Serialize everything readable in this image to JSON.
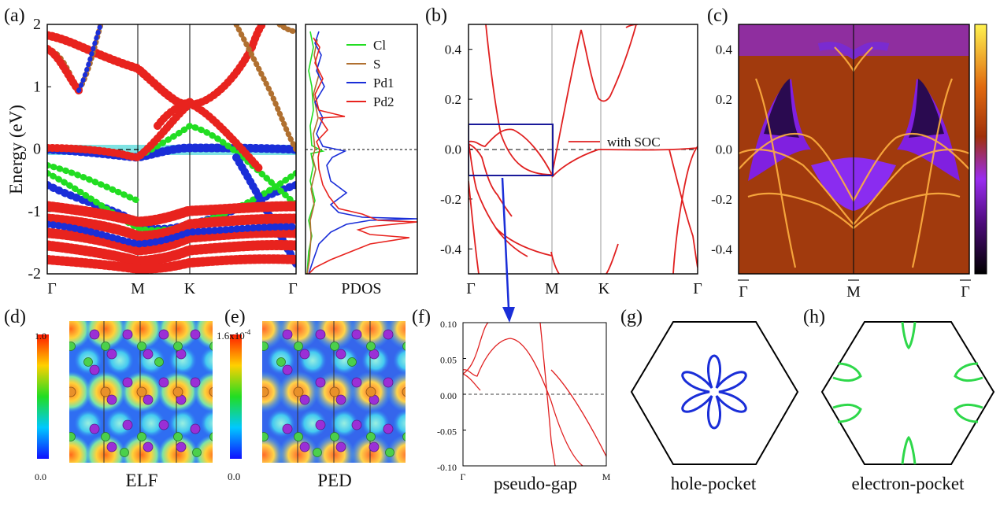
{
  "panels": {
    "a": "(a)",
    "b": "(b)",
    "c": "(c)",
    "d": "(d)",
    "e": "(e)",
    "f": "(f)",
    "g": "(g)",
    "h": "(h)"
  },
  "colors": {
    "cl": "#22dd22",
    "s": "#b07030",
    "pd1": "#1a2ed8",
    "pd2": "#e8231e",
    "soc": "#e02020",
    "arrow": "#1a2ed8",
    "highlight": "#7fe3e3"
  },
  "chart_data": [
    {
      "id": "a",
      "type": "line",
      "ylabel": "Energy (eV)",
      "ylim": [
        -2,
        2
      ],
      "yticks": [
        "2",
        "1",
        "0",
        "-1",
        "-2"
      ],
      "kpoints": [
        "Γ",
        "M",
        "K",
        "Γ"
      ],
      "pdos_label": "PDOS",
      "legend": {
        "position": "right",
        "entries": [
          "Cl",
          "S",
          "Pd1",
          "Pd2"
        ]
      }
    },
    {
      "id": "b",
      "type": "line",
      "ylim": [
        -0.5,
        0.5
      ],
      "yticks": [
        "0.4",
        "0.2",
        "0.0",
        "-0.2",
        "-0.4"
      ],
      "kpoints": [
        "Γ",
        "M",
        "K",
        "Γ"
      ],
      "legend": {
        "position": "right",
        "entries": [
          "with SOC"
        ]
      }
    },
    {
      "id": "c",
      "type": "heatmap",
      "ylim": [
        -0.5,
        0.5
      ],
      "yticks": [
        "0.4",
        "0.2",
        "0.0",
        "-0.2",
        "-0.4"
      ],
      "kpoints": [
        "Γ",
        "M",
        "Γ"
      ]
    },
    {
      "id": "d",
      "type": "heatmap",
      "colorbar": {
        "max": "1.0",
        "min": "0.0"
      },
      "caption": "ELF"
    },
    {
      "id": "e",
      "type": "heatmap",
      "colorbar": {
        "max": "1.6x10",
        "max_exp": "-4",
        "min": "0.0"
      },
      "caption": "PED"
    },
    {
      "id": "f",
      "type": "line",
      "ylim": [
        -0.1,
        0.1
      ],
      "yticks": [
        "0.10",
        "0.05",
        "0.00",
        "-0.05",
        "-0.10"
      ],
      "kpoints": [
        "Γ",
        "M"
      ],
      "caption": "pseudo-gap"
    },
    {
      "id": "g",
      "type": "diagram",
      "caption": "hole-pocket"
    },
    {
      "id": "h",
      "type": "diagram",
      "caption": "electron-pocket"
    }
  ]
}
